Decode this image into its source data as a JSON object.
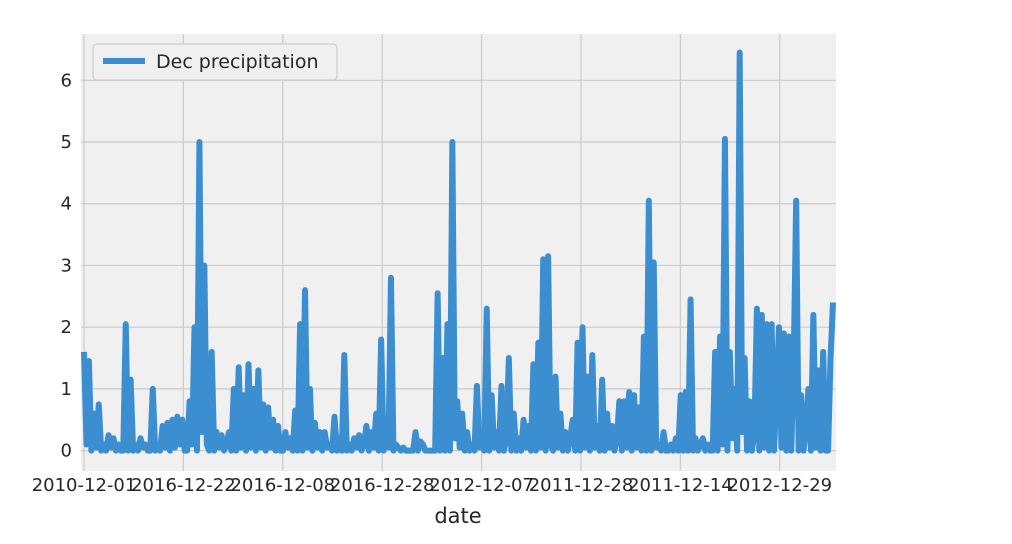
{
  "chart_data": {
    "type": "line",
    "xlabel": "date",
    "ylabel": "",
    "ylim": [
      -0.33,
      6.75
    ],
    "yticks": [
      0,
      1,
      2,
      3,
      4,
      5,
      6
    ],
    "xtick_labels": [
      "2010-12-01",
      "2016-12-22",
      "2016-12-08",
      "2016-12-28",
      "2012-12-07",
      "2011-12-28",
      "2011-12-14",
      "2012-12-29"
    ],
    "grid": true,
    "legend_position": "top-left",
    "series_color": "#3b8ed0",
    "series": [
      {
        "name": "Dec precipitation",
        "values": [
          1.6,
          0.1,
          1.45,
          0.0,
          0.6,
          0.05,
          0.75,
          0.0,
          0.1,
          0.0,
          0.25,
          0.05,
          0.2,
          0.0,
          0.1,
          0.0,
          0.0,
          2.05,
          0.0,
          1.15,
          0.0,
          0.1,
          0.0,
          0.2,
          0.05,
          0.1,
          0.0,
          0.0,
          1.0,
          0.0,
          0.1,
          0.0,
          0.4,
          0.05,
          0.45,
          0.0,
          0.5,
          0.05,
          0.55,
          0.1,
          0.5,
          0.0,
          0.0,
          0.8,
          0.1,
          2.0,
          0.0,
          5.0,
          0.3,
          3.0,
          0.1,
          0.0,
          1.6,
          0.0,
          0.3,
          0.05,
          0.25,
          0.0,
          0.1,
          0.3,
          0.0,
          1.0,
          0.0,
          1.35,
          0.05,
          0.9,
          0.0,
          1.4,
          0.05,
          1.0,
          0.0,
          1.3,
          0.05,
          0.75,
          0.0,
          0.7,
          0.05,
          0.5,
          0.0,
          0.4,
          0.0,
          0.0,
          0.3,
          0.05,
          0.2,
          0.0,
          0.65,
          0.0,
          2.05,
          0.0,
          2.6,
          0.05,
          1.0,
          0.0,
          0.45,
          0.05,
          0.3,
          0.0,
          0.3,
          0.05,
          0.1,
          0.0,
          0.55,
          0.0,
          0.2,
          0.0,
          1.55,
          0.0,
          0.1,
          0.0,
          0.2,
          0.05,
          0.25,
          0.0,
          0.1,
          0.4,
          0.0,
          0.3,
          0.05,
          0.6,
          0.0,
          1.8,
          0.0,
          0.5,
          0.05,
          2.8,
          0.0,
          0.1,
          0.05,
          0.0,
          0.05,
          0.0,
          0.0,
          0.0,
          0.0,
          0.3,
          0.0,
          0.15,
          0.1,
          0.0,
          0.0,
          0.0,
          0.0,
          0.0,
          2.55,
          0.0,
          1.5,
          0.0,
          2.05,
          0.0,
          5.0,
          0.2,
          0.8,
          0.05,
          0.6,
          0.0,
          0.3,
          0.0,
          0.1,
          0.0,
          1.05,
          0.05,
          0.1,
          0.0,
          2.3,
          0.0,
          0.9,
          0.05,
          0.3,
          0.0,
          1.05,
          0.0,
          0.2,
          1.5,
          0.0,
          0.6,
          0.0,
          0.2,
          0.0,
          0.5,
          0.05,
          0.4,
          0.0,
          1.4,
          0.0,
          1.75,
          0.05,
          3.1,
          0.0,
          3.15,
          0.1,
          0.0,
          1.2,
          0.05,
          0.6,
          0.0,
          0.3,
          0.0,
          0.2,
          0.5,
          0.0,
          1.75,
          0.0,
          2.0,
          0.05,
          1.2,
          0.0,
          1.55,
          0.05,
          0.4,
          0.0,
          1.15,
          0.0,
          0.6,
          0.05,
          0.4,
          0.0,
          0.2,
          0.8,
          0.0,
          0.8,
          0.05,
          0.95,
          0.0,
          0.9,
          0.05,
          0.7,
          0.0,
          1.85,
          0.0,
          4.05,
          0.0,
          3.05,
          0.05,
          0.1,
          0.0,
          0.3,
          0.0,
          0.0,
          0.1,
          0.0,
          0.2,
          0.0,
          0.9,
          0.0,
          0.95,
          0.0,
          2.45,
          0.0,
          0.2,
          0.0,
          0.1,
          0.2,
          0.0,
          0.1,
          0.0,
          0.0,
          1.6,
          0.0,
          1.85,
          0.1,
          5.05,
          0.0,
          1.6,
          0.2,
          1.0,
          0.0,
          6.45,
          0.3,
          1.5,
          0.0,
          0.8,
          0.0,
          0.3,
          2.3,
          0.0,
          2.2,
          0.05,
          2.05,
          0.0,
          2.05,
          0.0,
          1.0,
          2.0,
          0.05,
          1.9,
          0.0,
          1.85,
          0.0,
          1.45,
          4.05,
          0.0,
          0.9,
          0.0,
          0.4,
          1.0,
          0.0,
          2.2,
          0.05,
          1.3,
          0.0,
          1.6,
          0.0,
          0.0,
          1.5,
          2.4
        ]
      }
    ]
  }
}
